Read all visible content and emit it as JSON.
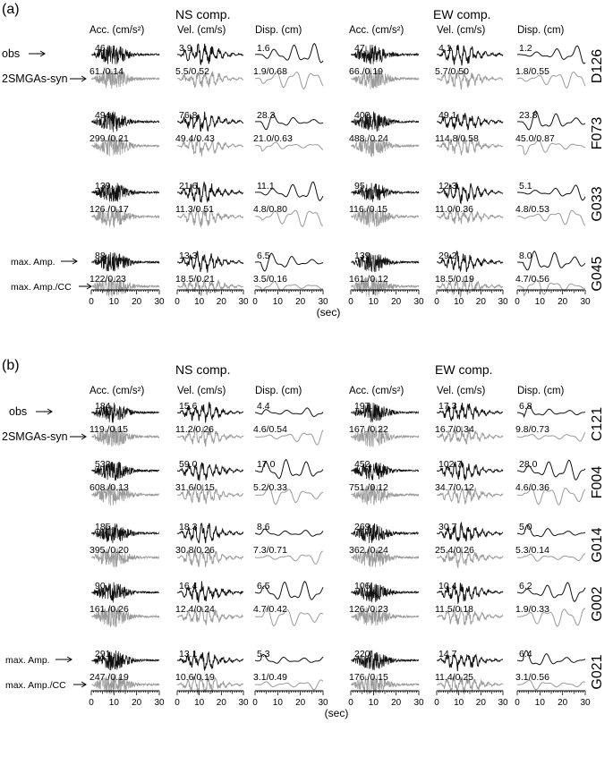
{
  "figure": {
    "panels": [
      {
        "label": "(a)",
        "components": [
          "NS comp.",
          "EW comp."
        ],
        "quantities": [
          "Acc. (cm/s²)",
          "Vel. (cm/s)",
          "Disp. (cm)"
        ],
        "legend": {
          "obs": "obs",
          "syn": "2SMGAs-syn",
          "max": "max. Amp.",
          "cc": "max. Amp./CC"
        },
        "stations": [
          {
            "name": "D126",
            "ns": [
              [
                "46.",
                "61./0.14"
              ],
              [
                "3.9",
                "5.5/0.52"
              ],
              [
                "1.6",
                "1.9/0.68"
              ]
            ],
            "ew": [
              [
                "47.",
                "66./0.19"
              ],
              [
                "4.1",
                "5.7/0.50"
              ],
              [
                "1.2",
                "1.8/0.55"
              ]
            ]
          },
          {
            "name": "F073",
            "ns": [
              [
                "494.",
                "299./0.21"
              ],
              [
                "76.8",
                "49.4/0.43"
              ],
              [
                "28.3",
                "21.0/0.63"
              ]
            ],
            "ew": [
              [
                "402.",
                "488./0.24"
              ],
              [
                "49.1",
                "114.8/0.58"
              ],
              [
                "23.8",
                "45.0/0.87"
              ]
            ]
          },
          {
            "name": "G033",
            "ns": [
              [
                "139.",
                "126./0.17"
              ],
              [
                "21.6",
                "11.3/0.51"
              ],
              [
                "11.1",
                "4.8/0.80"
              ]
            ],
            "ew": [
              [
                "95.",
                "116./0.15"
              ],
              [
                "12.3",
                "11.0/0.36"
              ],
              [
                "5.1",
                "4.8/0.53"
              ]
            ]
          },
          {
            "name": "G045",
            "ns": [
              [
                "88.",
                "122/0.23"
              ],
              [
                "13.3",
                "18.5/0.21"
              ],
              [
                "6.5",
                "3.5/0.16"
              ]
            ],
            "ew": [
              [
                "139.",
                "161./0.12"
              ],
              [
                "29.2",
                "18.5/0.19"
              ],
              [
                "8.0",
                "4.7/0.56"
              ]
            ]
          }
        ],
        "axis_ticks": [
          "0",
          "10",
          "20",
          "30"
        ],
        "axis_label": "(sec)"
      },
      {
        "label": "(b)",
        "components": [
          "NS comp.",
          "EW comp."
        ],
        "quantities": [
          "Acc. (cm/s²)",
          "Vel. (cm/s)",
          "Disp. (cm)"
        ],
        "legend": {
          "obs": "obs",
          "syn": "2SMGAs-syn",
          "max": "max. Amp.",
          "cc": "max. Amp./CC"
        },
        "stations": [
          {
            "name": "C121",
            "ns": [
              [
                "184.",
                "119./0.15"
              ],
              [
                "15.6",
                "11.2/0.26"
              ],
              [
                "4.4",
                "4.6/0.54"
              ]
            ],
            "ew": [
              [
                "197.",
                "167./0.22"
              ],
              [
                "17.3",
                "16.7/0.34"
              ],
              [
                "6.8",
                "9.8/0.73"
              ]
            ]
          },
          {
            "name": "F004",
            "ns": [
              [
                "532.",
                "608./0.13"
              ],
              [
                "59.0",
                "31.6/0.15"
              ],
              [
                "17.0",
                "5.2/0.33"
              ]
            ],
            "ew": [
              [
                "452.",
                "751./0.12"
              ],
              [
                "102.7",
                "34.7/0.12"
              ],
              [
                "28.0",
                "4.6/0.36"
              ]
            ]
          },
          {
            "name": "G014",
            "ns": [
              [
                "185.",
                "395./0.20"
              ],
              [
                "18.3",
                "30.8/0.26"
              ],
              [
                "8.6",
                "7.3/0.71"
              ]
            ],
            "ew": [
              [
                "269.",
                "362./0.24"
              ],
              [
                "30.7",
                "25.4/0.26"
              ],
              [
                "5.0",
                "5.3/0.14"
              ]
            ]
          },
          {
            "name": "G002",
            "ns": [
              [
                "90.",
                "161./0.26"
              ],
              [
                "16.4",
                "12.4/0.24"
              ],
              [
                "6.5",
                "4.7/0.42"
              ]
            ],
            "ew": [
              [
                "106.",
                "126./0.23"
              ],
              [
                "10.4",
                "11.5/0.18"
              ],
              [
                "6.2",
                "1.9/0.33"
              ]
            ]
          },
          {
            "name": "G021",
            "ns": [
              [
                "291.",
                "247./0.19"
              ],
              [
                "13.1",
                "10.6/0.19"
              ],
              [
                "5.3",
                "3.1/0.49"
              ]
            ],
            "ew": [
              [
                "220.",
                "176./0.15"
              ],
              [
                "14.7",
                "11.4/0.25"
              ],
              [
                "6.4",
                "3.1/0.56"
              ]
            ]
          }
        ],
        "axis_ticks": [
          "0",
          "10",
          "20",
          "30"
        ],
        "axis_label": "(sec)"
      }
    ],
    "colors": {
      "observed": "#111111",
      "synthetic": "#9a9a9a",
      "axis": "#000000"
    }
  }
}
